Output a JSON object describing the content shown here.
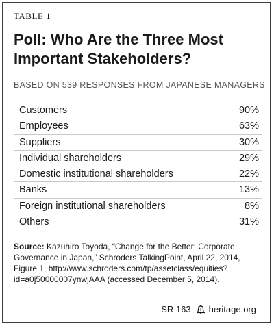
{
  "table_label": "TABLE 1",
  "title": "Poll: Who Are the Three Most Important Stakeholders?",
  "subtitle": "BASED ON 539 RESPONSES FROM JAPANESE MANAGERS",
  "rows": [
    {
      "label": "Customers",
      "value": "90%"
    },
    {
      "label": "Employees",
      "value": "63%"
    },
    {
      "label": "Suppliers",
      "value": "30%"
    },
    {
      "label": "Individual shareholders",
      "value": "29%"
    },
    {
      "label": "Domestic institutional shareholders",
      "value": "22%"
    },
    {
      "label": "Banks",
      "value": "13%"
    },
    {
      "label": "Foreign institutional shareholders",
      "value": "8%"
    },
    {
      "label": "Others",
      "value": "31%"
    }
  ],
  "source": {
    "label": "Source:",
    "text": " Kazuhiro Toyoda, “Change for the Better: Corporate Governance in Japan,” Schroders TalkingPoint, April 22, 2014, Figure 1, http://www.schroders.com/tp/assetclass/equities?id=a0j50000007ynwjAAA (accessed December 5, 2014)."
  },
  "footer": {
    "report": "SR 163",
    "icon": "liberty-bell-icon",
    "site": "heritage.org"
  }
}
